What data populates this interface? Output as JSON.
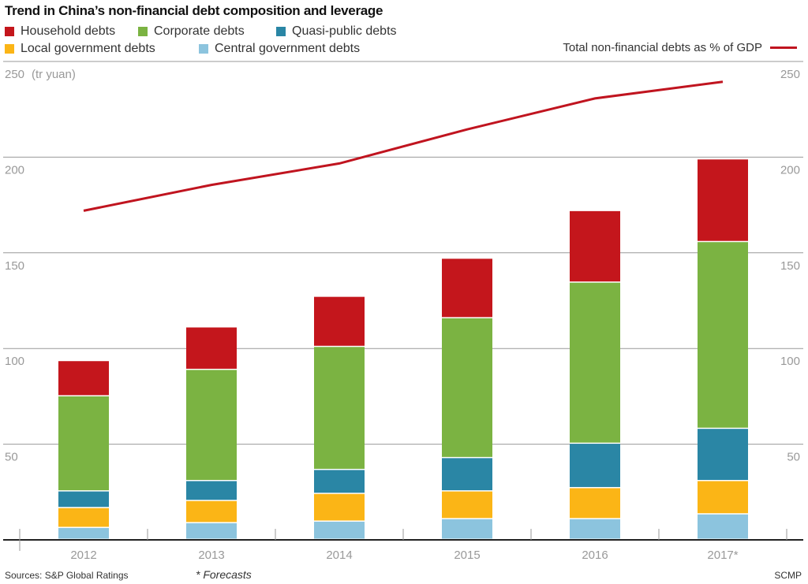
{
  "chart_data": {
    "type": "bar",
    "stacked": true,
    "title": "Trend in China’s non-financial debt composition and leverage",
    "ylabel": "(tr yuan)",
    "ylim": [
      0,
      250
    ],
    "yticks": [
      50,
      100,
      150,
      200,
      250
    ],
    "grid": true,
    "legend_placement": "top",
    "categories": [
      "2012",
      "2013",
      "2014",
      "2015",
      "2016",
      "2017*"
    ],
    "series": [
      {
        "name": "Central government debts",
        "color": "#8cc4de",
        "values": [
          6.2,
          8.7,
          9.5,
          10.8,
          10.8,
          13.3
        ]
      },
      {
        "name": "Local government debts",
        "color": "#fbb516",
        "values": [
          10.4,
          11.6,
          14.5,
          14.5,
          16.2,
          17.4
        ]
      },
      {
        "name": "Quasi-public debts",
        "color": "#2a86a5",
        "values": [
          8.7,
          10.4,
          12.5,
          17.4,
          23.2,
          27.3
        ]
      },
      {
        "name": "Corporate debts",
        "color": "#7bb342",
        "values": [
          49.7,
          58.1,
          64.3,
          73.1,
          84.2,
          97.6
        ]
      },
      {
        "name": "Household debts",
        "color": "#c4161c",
        "values": [
          18.4,
          22.2,
          26.2,
          31.1,
          37.4,
          43.2
        ]
      }
    ],
    "line_series": {
      "name": "Total non-financial debts as % of GDP",
      "color": "#c0141f",
      "values": [
        172,
        185.5,
        196.7,
        214.5,
        230.7,
        239.4
      ]
    },
    "legend_order": [
      "Household debts",
      "Corporate debts",
      "Quasi-public debts",
      "Local government debts",
      "Central government debts"
    ]
  },
  "footer": {
    "source": "Sources: S&P Global Ratings",
    "note": "* Forecasts",
    "credit": "SCMP"
  }
}
